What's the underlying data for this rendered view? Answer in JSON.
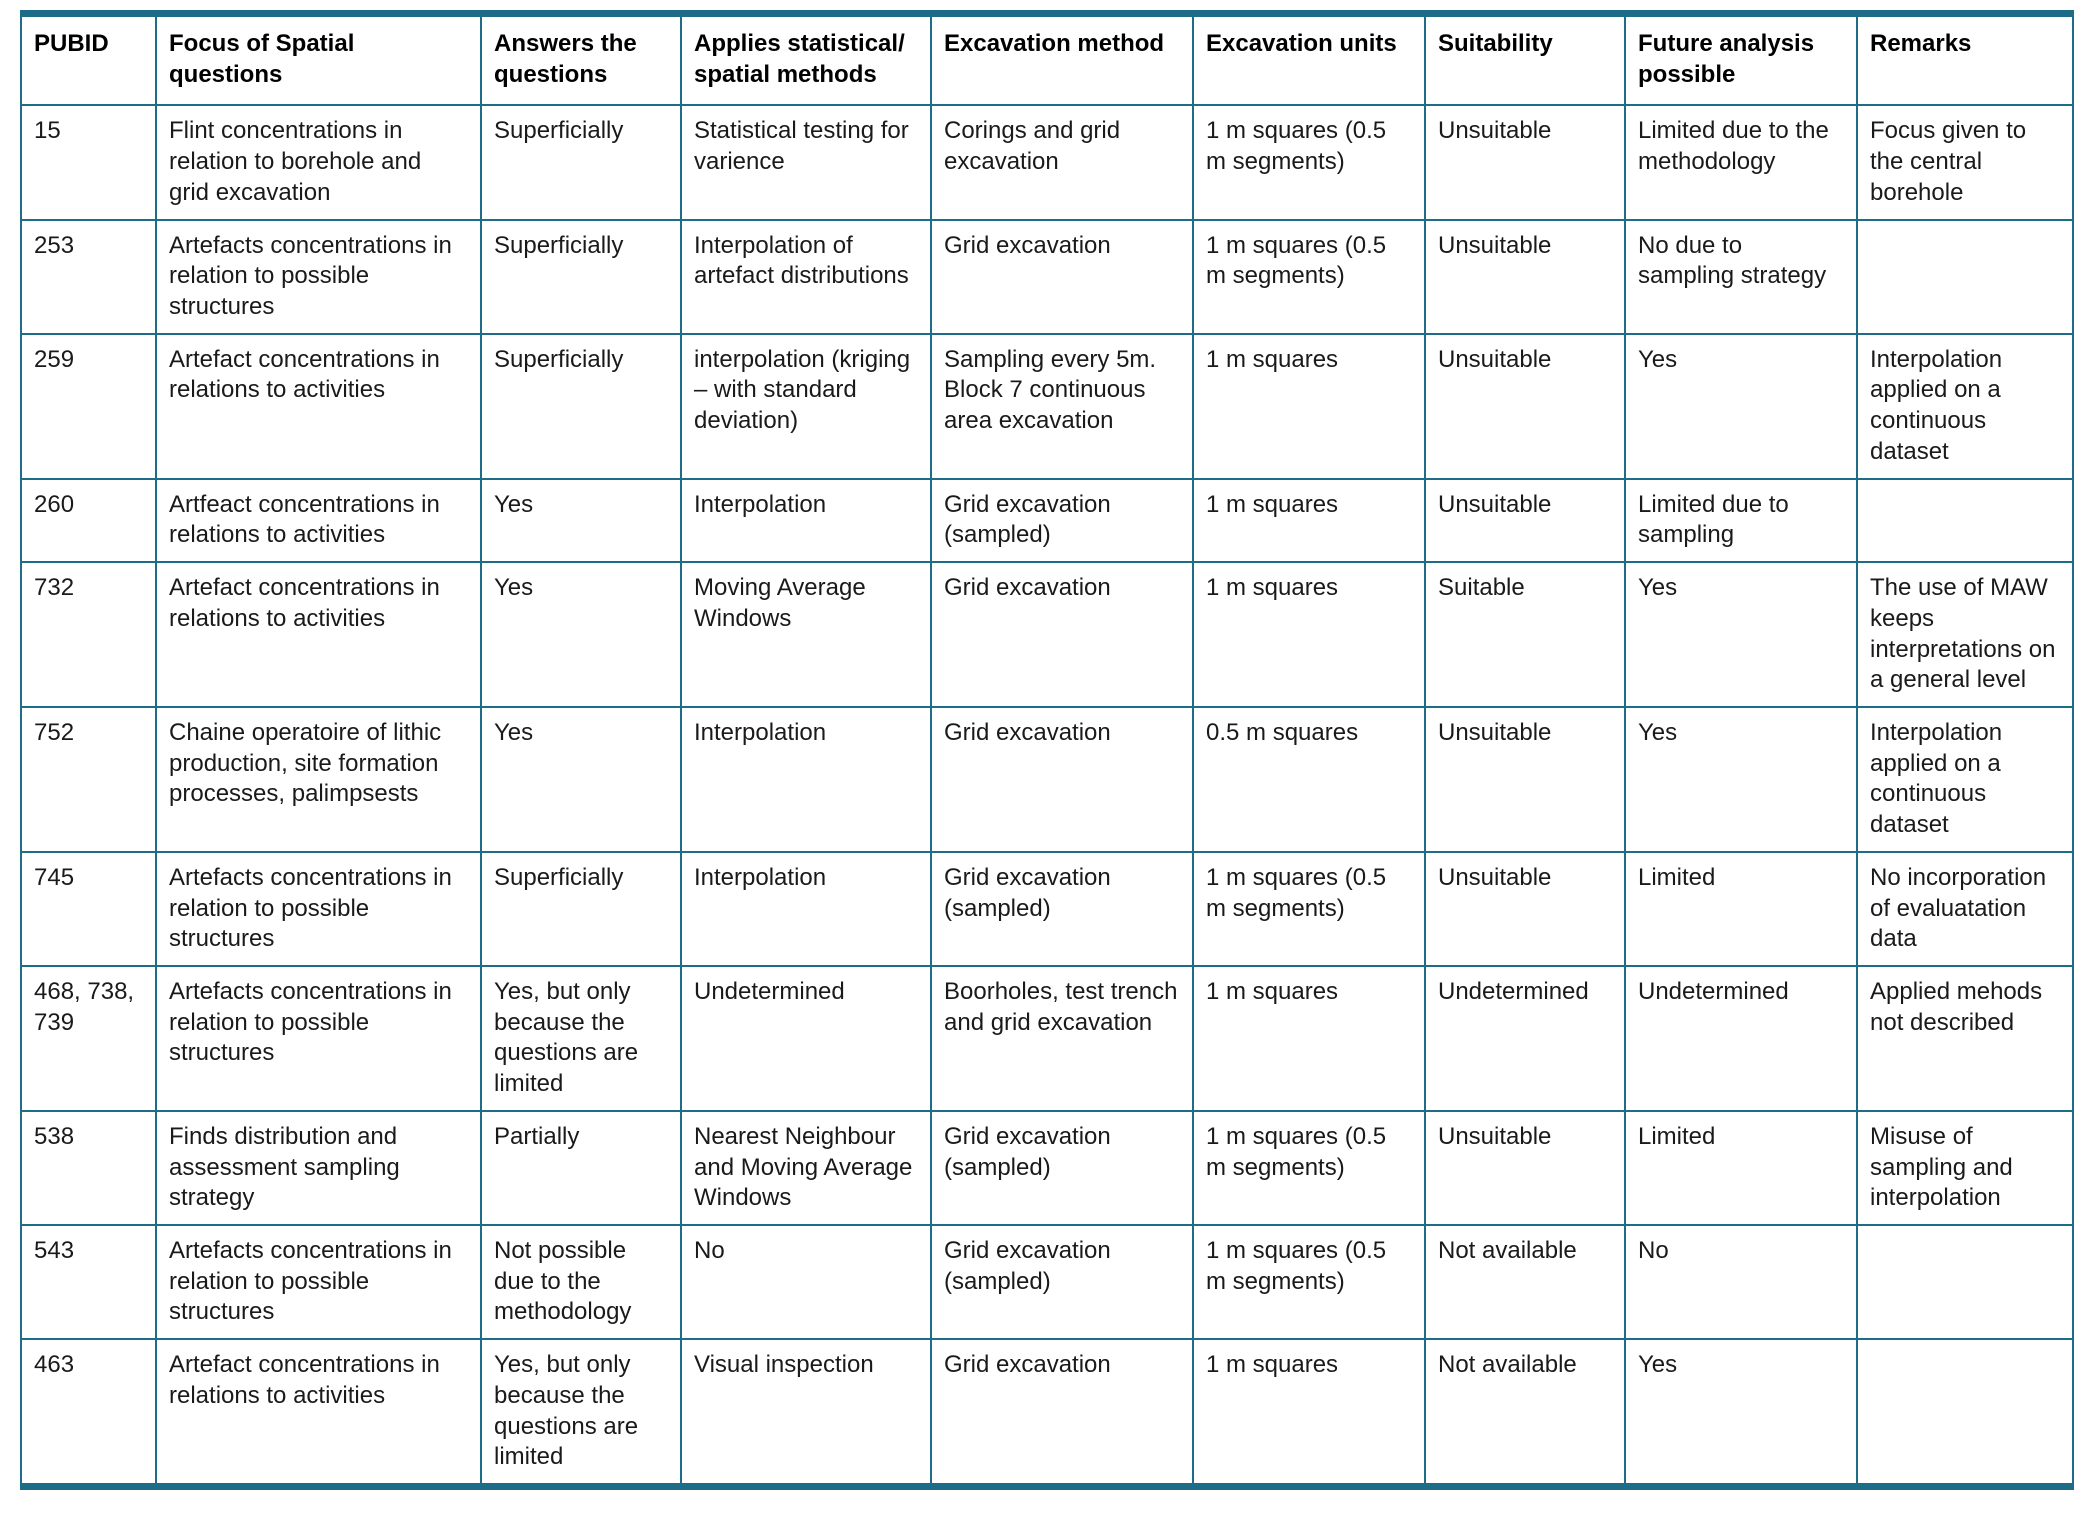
{
  "colors": {
    "border": "#1d6d89",
    "text": "#1a1a1a",
    "background": "#ffffff"
  },
  "table": {
    "columns": [
      {
        "key": "pubid",
        "label": "PUBID"
      },
      {
        "key": "focus",
        "label": "Focus of Spatial questions"
      },
      {
        "key": "answers",
        "label": "Answers the questions"
      },
      {
        "key": "methods",
        "label": "Applies statistical/ spatial methods"
      },
      {
        "key": "exc_method",
        "label": "Excavation method"
      },
      {
        "key": "exc_units",
        "label": "Excavation units"
      },
      {
        "key": "suitability",
        "label": "Suitability"
      },
      {
        "key": "future",
        "label": "Future analysis possible"
      },
      {
        "key": "remarks",
        "label": "Remarks"
      }
    ],
    "rows": [
      {
        "pubid": "15",
        "focus": "Flint concentrations in relation to borehole and grid excavation",
        "answers": "Superficially",
        "methods": "Statistical testing for varience",
        "exc_method": "Corings and grid excavation",
        "exc_units": "1 m squares (0.5 m segments)",
        "suitability": "Unsuitable",
        "future": "Limited due to the methodology",
        "remarks": "Focus given to the central borehole"
      },
      {
        "pubid": "253",
        "focus": "Artefacts concentrations in relation to possible structures",
        "answers": "Superficially",
        "methods": "Interpolation of artefact distributions",
        "exc_method": "Grid excavation",
        "exc_units": "1 m squares (0.5 m segments)",
        "suitability": "Unsuitable",
        "future": "No due to sampling strategy",
        "remarks": ""
      },
      {
        "pubid": "259",
        "focus": "Artefact concentrations in relations to activities",
        "answers": "Superficially",
        "methods": "interpolation (kriging – with standard deviation)",
        "exc_method": "Sampling every 5m. Block 7 continuous area excavation",
        "exc_units": "1 m squares",
        "suitability": "Unsuitable",
        "future": "Yes",
        "remarks": "Interpolation applied on a continuous dataset"
      },
      {
        "pubid": "260",
        "focus": "Artfeact concentrations in relations to activities",
        "answers": "Yes",
        "methods": "Interpolation",
        "exc_method": "Grid excavation (sampled)",
        "exc_units": "1 m squares",
        "suitability": "Unsuitable",
        "future": "Limited due to sampling",
        "remarks": ""
      },
      {
        "pubid": "732",
        "focus": "Artefact concentrations in relations to activities",
        "answers": "Yes",
        "methods": "Moving Average Windows",
        "exc_method": "Grid excavation",
        "exc_units": "1 m squares",
        "suitability": "Suitable",
        "future": "Yes",
        "remarks": "The use of MAW keeps interpretations on a general level"
      },
      {
        "pubid": "752",
        "focus": "Chaine operatoire of lithic production, site formation processes, palimpsests",
        "answers": "Yes",
        "methods": "Interpolation",
        "exc_method": "Grid excavation",
        "exc_units": "0.5 m squares",
        "suitability": "Unsuitable",
        "future": "Yes",
        "remarks": "Interpolation applied on a continuous dataset"
      },
      {
        "pubid": "745",
        "focus": "Artefacts concentrations in relation to possible structures",
        "answers": "Superficially",
        "methods": "Interpolation",
        "exc_method": "Grid excavation (sampled)",
        "exc_units": "1 m squares (0.5 m segments)",
        "suitability": "Unsuitable",
        "future": "Limited",
        "remarks": "No incorporation of evaluatation data"
      },
      {
        "pubid": "468, 738, 739",
        "focus": "Artefacts concentrations in relation to possible structures",
        "answers": "Yes, but only because the questions are limited",
        "methods": "Undetermined",
        "exc_method": "Boorholes, test trench and grid excavation",
        "exc_units": "1 m squares",
        "suitability": "Undetermined",
        "future": "Undetermined",
        "remarks": "Applied mehods not described"
      },
      {
        "pubid": "538",
        "focus": "Finds distribution and assessment sampling strategy",
        "answers": "Partially",
        "methods": "Nearest Neighbour and Moving Average Windows",
        "exc_method": "Grid excavation (sampled)",
        "exc_units": "1 m squares (0.5 m segments)",
        "suitability": "Unsuitable",
        "future": "Limited",
        "remarks": "Misuse of sampling and interpolation"
      },
      {
        "pubid": "543",
        "focus": "Artefacts concentrations in relation to possible structures",
        "answers": "Not possible due to the methodology",
        "methods": "No",
        "exc_method": "Grid excavation (sampled)",
        "exc_units": "1 m squares (0.5 m segments)",
        "suitability": "Not available",
        "future": "No",
        "remarks": ""
      },
      {
        "pubid": "463",
        "focus": "Artefact concentrations in relations to activities",
        "answers": "Yes, but only because the questions are limited",
        "methods": "Visual inspection",
        "exc_method": "Grid excavation",
        "exc_units": "1 m squares",
        "suitability": "Not available",
        "future": "Yes",
        "remarks": ""
      }
    ]
  }
}
